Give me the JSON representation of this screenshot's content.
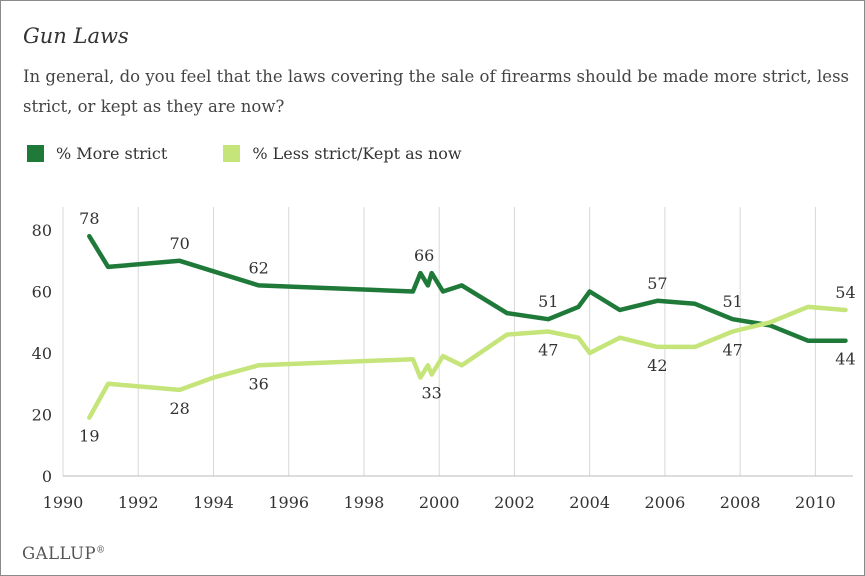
{
  "title": "Gun Laws",
  "question": "In general, do you feel that the laws covering the sale of firearms should be made more strict, less strict, or kept as they are now?",
  "source": "GALLUP",
  "source_mark": "®",
  "chart_data": {
    "type": "line",
    "xlim": [
      1990,
      2011
    ],
    "ylim": [
      0,
      90
    ],
    "xticks": [
      1990,
      1992,
      1994,
      1996,
      1998,
      2000,
      2002,
      2004,
      2006,
      2008,
      2010
    ],
    "yticks": [
      0,
      20,
      40,
      60,
      80
    ],
    "grid": "vertical",
    "legend_placement": "top-left",
    "series": [
      {
        "name": "% More strict",
        "color": "#1f7a3a",
        "points": [
          [
            1990.7,
            78
          ],
          [
            1991.2,
            68
          ],
          [
            1993.1,
            70
          ],
          [
            1995.2,
            62
          ],
          [
            1999.3,
            60
          ],
          [
            1999.5,
            66
          ],
          [
            1999.7,
            62
          ],
          [
            1999.8,
            66
          ],
          [
            2000.1,
            60
          ],
          [
            2000.6,
            62
          ],
          [
            2001.8,
            53
          ],
          [
            2002.9,
            51
          ],
          [
            2003.7,
            55
          ],
          [
            2004.0,
            60
          ],
          [
            2004.8,
            54
          ],
          [
            2005.8,
            57
          ],
          [
            2006.8,
            56
          ],
          [
            2007.8,
            51
          ],
          [
            2008.8,
            49
          ],
          [
            2009.8,
            44
          ],
          [
            2010.8,
            44
          ]
        ],
        "labels": [
          {
            "x": 1990.7,
            "y": 78,
            "text": "78",
            "pos": "above"
          },
          {
            "x": 1993.1,
            "y": 70,
            "text": "70",
            "pos": "above"
          },
          {
            "x": 1995.2,
            "y": 62,
            "text": "62",
            "pos": "above"
          },
          {
            "x": 1999.6,
            "y": 66,
            "text": "66",
            "pos": "above"
          },
          {
            "x": 2002.9,
            "y": 51,
            "text": "51",
            "pos": "above"
          },
          {
            "x": 2005.8,
            "y": 57,
            "text": "57",
            "pos": "above"
          },
          {
            "x": 2007.8,
            "y": 51,
            "text": "51",
            "pos": "above"
          },
          {
            "x": 2010.8,
            "y": 44,
            "text": "44",
            "pos": "below"
          }
        ]
      },
      {
        "name": "% Less strict/Kept as now",
        "color": "#c5e57a",
        "points": [
          [
            1990.7,
            19
          ],
          [
            1991.2,
            30
          ],
          [
            1993.1,
            28
          ],
          [
            1994.0,
            32
          ],
          [
            1995.2,
            36
          ],
          [
            1999.3,
            38
          ],
          [
            1999.5,
            32
          ],
          [
            1999.7,
            36
          ],
          [
            1999.8,
            33
          ],
          [
            2000.1,
            39
          ],
          [
            2000.6,
            36
          ],
          [
            2001.8,
            46
          ],
          [
            2002.9,
            47
          ],
          [
            2003.7,
            45
          ],
          [
            2004.0,
            40
          ],
          [
            2004.8,
            45
          ],
          [
            2005.8,
            42
          ],
          [
            2006.8,
            42
          ],
          [
            2007.8,
            47
          ],
          [
            2008.8,
            50
          ],
          [
            2009.8,
            55
          ],
          [
            2010.8,
            54
          ]
        ],
        "labels": [
          {
            "x": 1990.7,
            "y": 19,
            "text": "19",
            "pos": "below"
          },
          {
            "x": 1993.1,
            "y": 28,
            "text": "28",
            "pos": "below"
          },
          {
            "x": 1995.2,
            "y": 36,
            "text": "36",
            "pos": "below"
          },
          {
            "x": 1999.8,
            "y": 33,
            "text": "33",
            "pos": "below"
          },
          {
            "x": 2002.9,
            "y": 47,
            "text": "47",
            "pos": "below"
          },
          {
            "x": 2005.8,
            "y": 42,
            "text": "42",
            "pos": "below"
          },
          {
            "x": 2007.8,
            "y": 47,
            "text": "47",
            "pos": "below"
          },
          {
            "x": 2010.8,
            "y": 54,
            "text": "54",
            "pos": "above"
          }
        ]
      }
    ]
  }
}
